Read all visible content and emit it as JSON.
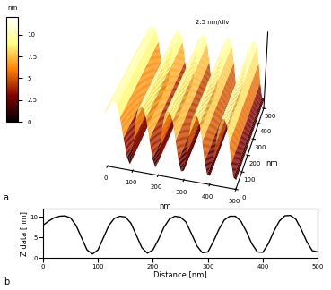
{
  "chart_data": [
    {
      "type": "surface",
      "panel_label": "a",
      "x_label": "nm",
      "y_label": "nm",
      "z_annotation": "2.5 nm/div",
      "xlim": [
        0,
        500
      ],
      "xticks": [
        0,
        100,
        200,
        300,
        400,
        500
      ],
      "ylim": [
        0,
        500
      ],
      "yticks": [
        0,
        100,
        200,
        300,
        400,
        500
      ],
      "zlim": [
        0,
        12
      ],
      "colorbar_label": "nm",
      "colorbar_range": [
        0,
        12
      ],
      "colorbar_ticks": [
        0,
        2.5,
        5,
        7.5,
        10
      ],
      "x": [
        0,
        10,
        20,
        30,
        40,
        50,
        60,
        70,
        80,
        90,
        100,
        110,
        120,
        130,
        140,
        150,
        160,
        170,
        180,
        190,
        200,
        210,
        220,
        230,
        240,
        250,
        260,
        270,
        280,
        290,
        300,
        310,
        320,
        330,
        340,
        350,
        360,
        370,
        380,
        390,
        400,
        410,
        420,
        430,
        440,
        450,
        460,
        470,
        480,
        490,
        500
      ],
      "values": [
        8,
        9,
        9.8,
        10.2,
        10.3,
        9.8,
        8,
        5,
        2,
        1,
        2,
        5,
        8,
        9.7,
        10.2,
        10,
        8.5,
        5.5,
        2.5,
        1.2,
        2,
        4.5,
        7.5,
        9.5,
        10.2,
        10,
        8.8,
        6,
        3,
        1.3,
        1.5,
        4,
        7,
        9.3,
        10.2,
        10.2,
        9,
        6.5,
        3.5,
        1.5,
        1.4,
        3.5,
        6.5,
        9,
        10.3,
        10.4,
        9.5,
        7,
        4,
        1.8,
        1.5
      ]
    },
    {
      "type": "line",
      "panel_label": "b",
      "x_label": "Distance [nm]",
      "y_label": "Z data [nm]",
      "color": "#000000",
      "xlim": [
        0,
        500
      ],
      "xticks": [
        0,
        100,
        200,
        300,
        400,
        500
      ],
      "ylim": [
        0,
        12
      ],
      "yticks": [
        0,
        5,
        10
      ],
      "x": [
        0,
        10,
        20,
        30,
        40,
        50,
        60,
        70,
        80,
        90,
        100,
        110,
        120,
        130,
        140,
        150,
        160,
        170,
        180,
        190,
        200,
        210,
        220,
        230,
        240,
        250,
        260,
        270,
        280,
        290,
        300,
        310,
        320,
        330,
        340,
        350,
        360,
        370,
        380,
        390,
        400,
        410,
        420,
        430,
        440,
        450,
        460,
        470,
        480,
        490,
        500
      ],
      "values": [
        8,
        9,
        9.8,
        10.2,
        10.3,
        9.8,
        8,
        5,
        2,
        1,
        2,
        5,
        8,
        9.7,
        10.2,
        10,
        8.5,
        5.5,
        2.5,
        1.2,
        2,
        4.5,
        7.5,
        9.5,
        10.2,
        10,
        8.8,
        6,
        3,
        1.3,
        1.5,
        4,
        7,
        9.3,
        10.2,
        10.2,
        9,
        6.5,
        3.5,
        1.5,
        1.4,
        3.5,
        6.5,
        9,
        10.3,
        10.4,
        9.5,
        7,
        4,
        1.8,
        1.5
      ]
    }
  ]
}
